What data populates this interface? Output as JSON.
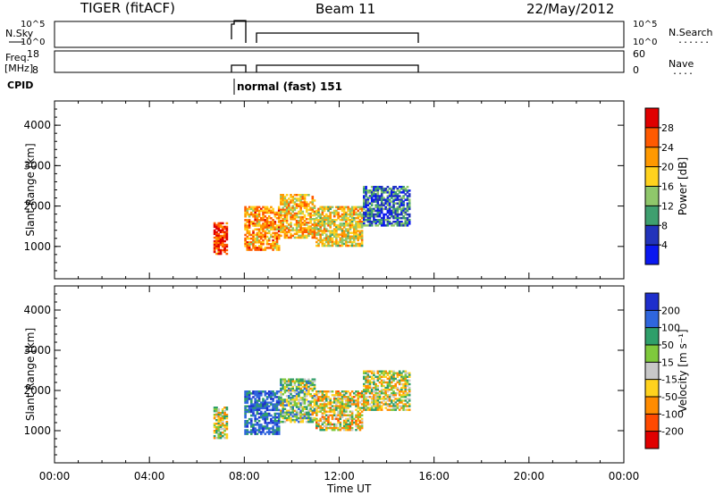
{
  "header": {
    "title": "TIGER (fitACF)",
    "beam": "Beam 11",
    "date": "22/May/2012"
  },
  "params": {
    "nsky_label": "N.Sky",
    "nsky_ticks": [
      "10^5",
      "10^0"
    ],
    "freq_label": "Freq.",
    "freq_unit": "[MHz]",
    "freq_ticks": [
      "18",
      "8"
    ],
    "cpid_label": "CPID",
    "cpid_text": "normal (fast) 151",
    "nsearch_label": "N.Search",
    "nsearch_ticks": [
      "10^5",
      "10^0"
    ],
    "nave_label": "Nave",
    "nave_ticks": [
      "60",
      "0"
    ],
    "dots": "......",
    "nave_dots": "...."
  },
  "xaxis": {
    "label": "Time UT",
    "ticks": [
      "00:00",
      "04:00",
      "08:00",
      "12:00",
      "16:00",
      "20:00",
      "00:00"
    ]
  },
  "chart_data": [
    {
      "type": "heatmap",
      "panel": "power",
      "xlabel": "Time UT",
      "ylabel": "Slant Range [km]",
      "xlim": [
        0,
        24
      ],
      "ylim": [
        200,
        4600
      ],
      "yticks": [
        1000,
        2000,
        3000,
        4000
      ],
      "colorbar": {
        "label": "Power [dB]",
        "ticks": [
          "28",
          "24",
          "20",
          "16",
          "12",
          "8",
          "4"
        ],
        "colors": [
          "#e00000",
          "#ff5a00",
          "#ff9900",
          "#ffd21e",
          "#8fc76b",
          "#3f9f6f",
          "#2233bb",
          "#0a18f0"
        ]
      },
      "regions": [
        {
          "t": [
            6.7,
            7.3
          ],
          "r": [
            800,
            1600
          ],
          "level": 26
        },
        {
          "t": [
            8.0,
            9.5
          ],
          "r": [
            900,
            2000
          ],
          "level": 20
        },
        {
          "t": [
            9.5,
            11.0
          ],
          "r": [
            1200,
            2300
          ],
          "level": 18
        },
        {
          "t": [
            11.0,
            13.0
          ],
          "r": [
            1000,
            2000
          ],
          "level": 16
        },
        {
          "t": [
            13.0,
            15.0
          ],
          "r": [
            1500,
            2500
          ],
          "level": 6
        }
      ]
    },
    {
      "type": "heatmap",
      "panel": "velocity",
      "xlabel": "Time UT",
      "ylabel": "Slant Range [km]",
      "xlim": [
        0,
        24
      ],
      "ylim": [
        200,
        4600
      ],
      "yticks": [
        1000,
        2000,
        3000,
        4000
      ],
      "colorbar": {
        "label": "Velocity [m s⁻¹]",
        "ticks": [
          "200",
          "100",
          "50",
          "15",
          "-15",
          "-50",
          "-100",
          "-200"
        ],
        "colors": [
          "#1e2ecc",
          "#2f66dd",
          "#2f9f6a",
          "#7fc93c",
          "#c8c8c8",
          "#ffd21e",
          "#ff8c00",
          "#ff4a00",
          "#e00000"
        ]
      },
      "regions": [
        {
          "t": [
            6.7,
            7.3
          ],
          "r": [
            800,
            1600
          ],
          "level": 0
        },
        {
          "t": [
            8.0,
            9.5
          ],
          "r": [
            900,
            2000
          ],
          "level": 150
        },
        {
          "t": [
            9.5,
            11.0
          ],
          "r": [
            1200,
            2300
          ],
          "level": 30
        },
        {
          "t": [
            11.0,
            13.0
          ],
          "r": [
            1000,
            2000
          ],
          "level": -20
        },
        {
          "t": [
            13.0,
            15.0
          ],
          "r": [
            1500,
            2500
          ],
          "level": 0
        }
      ]
    }
  ],
  "colors": {
    "axis": "#000000",
    "background": "#ffffff"
  }
}
